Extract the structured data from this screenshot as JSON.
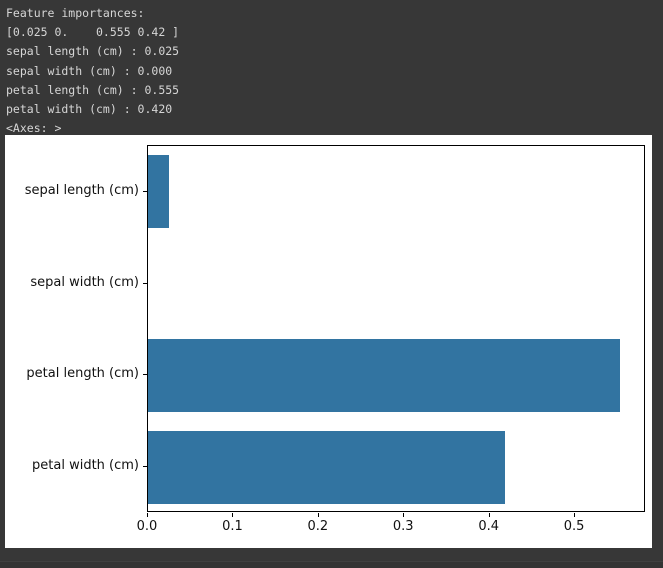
{
  "terminal": {
    "background": "#373737",
    "text_color": "#d6d6d6",
    "lines": [
      "Feature importances:",
      "[0.025 0.    0.555 0.42 ]",
      "sepal length (cm) : 0.025",
      "sepal width (cm) : 0.000",
      "petal length (cm) : 0.555",
      "petal width (cm) : 0.420",
      "<Axes: >"
    ]
  },
  "chart_data": {
    "type": "bar",
    "orientation": "horizontal",
    "title": "",
    "xlabel": "",
    "ylabel": "",
    "categories": [
      "sepal length (cm)",
      "sepal width (cm)",
      "petal length (cm)",
      "petal width (cm)"
    ],
    "values": [
      0.025,
      0.0,
      0.555,
      0.42
    ],
    "xlim": [
      0.0,
      0.583
    ],
    "xticks": [
      0.0,
      0.1,
      0.2,
      0.3,
      0.4,
      0.5
    ],
    "xtick_labels": [
      "0.0",
      "0.1",
      "0.2",
      "0.3",
      "0.4",
      "0.5"
    ],
    "bar_color": "#3274a1",
    "figure_background": "#ffffff",
    "grid": false,
    "legend": null
  }
}
